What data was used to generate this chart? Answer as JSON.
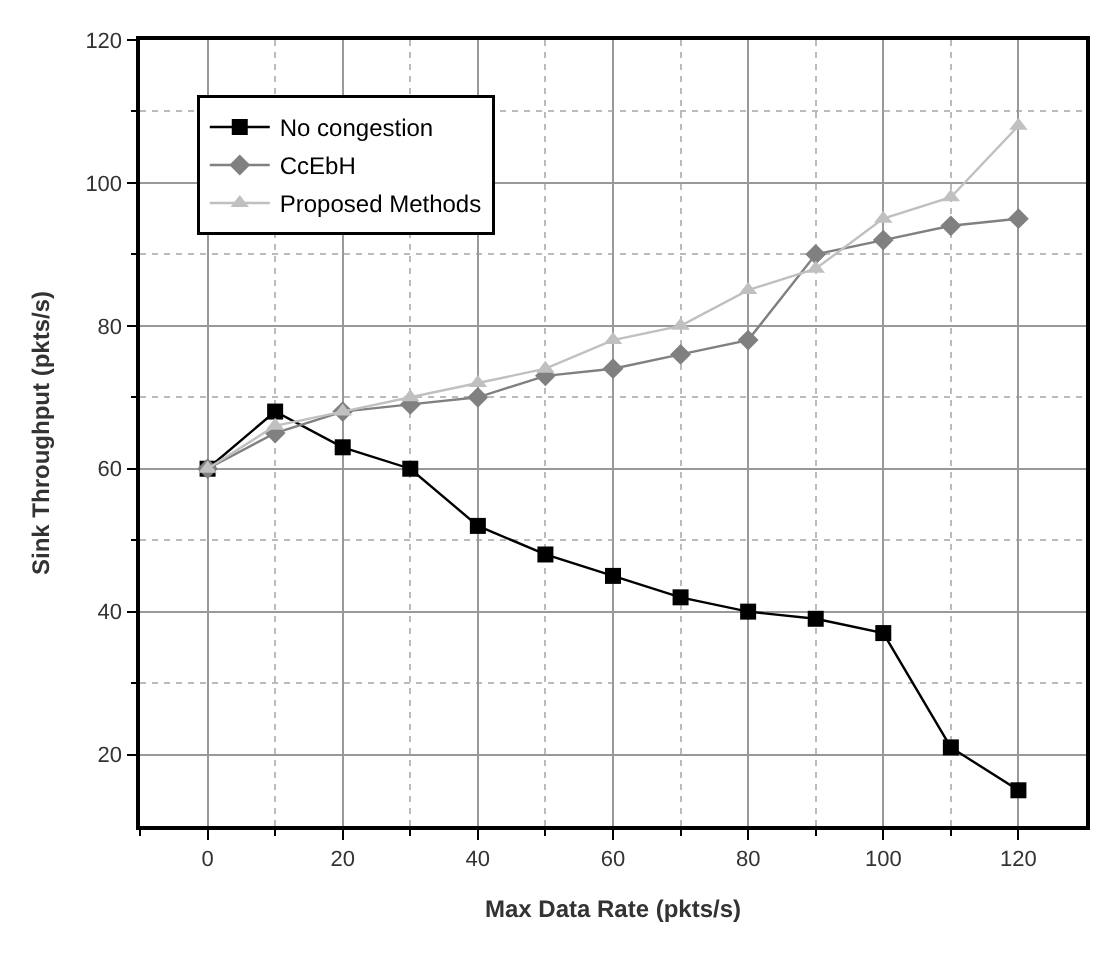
{
  "chart_data": {
    "type": "line",
    "xlabel": "Max Data Rate (pkts/s)",
    "ylabel": "Sink Throughput (pkts/s)",
    "x": [
      0,
      10,
      20,
      30,
      40,
      50,
      60,
      70,
      80,
      90,
      100,
      110,
      120
    ],
    "series": [
      {
        "name": "No congestion",
        "color": "#000000",
        "marker": "square",
        "values": [
          60,
          68,
          63,
          60,
          52,
          48,
          45,
          42,
          40,
          39,
          37,
          21,
          15
        ]
      },
      {
        "name": "CcEbH",
        "color": "#808080",
        "marker": "diamond",
        "values": [
          60,
          65,
          68,
          69,
          70,
          73,
          74,
          76,
          78,
          90,
          92,
          94,
          95
        ]
      },
      {
        "name": "Proposed Methods",
        "color": "#c0c0c0",
        "marker": "triangle",
        "values": [
          60,
          66,
          68,
          70,
          72,
          74,
          78,
          80,
          85,
          88,
          95,
          98,
          108
        ]
      }
    ],
    "xlim": [
      -10,
      130
    ],
    "ylim": [
      10,
      120
    ],
    "xticks": [
      {
        "value": -10,
        "label": null
      },
      0,
      {
        "value": 10,
        "label": null
      },
      20,
      {
        "value": 30,
        "label": null
      },
      40,
      {
        "value": 50,
        "label": null
      },
      60,
      {
        "value": 70,
        "label": null
      },
      80,
      {
        "value": 90,
        "label": null
      },
      100,
      {
        "value": 110,
        "label": null
      },
      120
    ],
    "yticks": [
      20,
      {
        "value": 30,
        "label": null
      },
      40,
      {
        "value": 50,
        "label": null
      },
      60,
      {
        "value": 70,
        "label": null
      },
      80,
      {
        "value": 90,
        "label": null
      },
      100,
      {
        "value": 110,
        "label": null
      },
      120
    ],
    "grid": true,
    "legend": "top left"
  }
}
